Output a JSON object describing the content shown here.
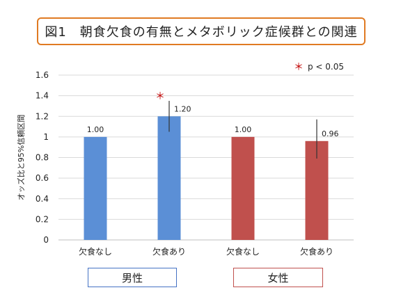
{
  "title": "図1　朝食欠食の有無とメタボリック症候群との関連",
  "significance_note": {
    "mark": "＊",
    "text": "p < 0.05"
  },
  "groups": [
    {
      "label": "男性",
      "color": "#4472c4"
    },
    {
      "label": "女性",
      "color": "#c0504d"
    }
  ],
  "chart_data": {
    "type": "bar",
    "categories": [
      "欠食なし",
      "欠食あり",
      "欠食なし",
      "欠食あり"
    ],
    "values": [
      1.0,
      1.2,
      1.0,
      0.96
    ],
    "value_labels": [
      "1.00",
      "1.20",
      "1.00",
      "0.96"
    ],
    "ci_low": [
      null,
      1.05,
      null,
      0.79
    ],
    "ci_high": [
      null,
      1.35,
      null,
      1.17
    ],
    "bar_colors": [
      "#5b8fd6",
      "#5b8fd6",
      "#c0504d",
      "#c0504d"
    ],
    "significant": [
      false,
      true,
      false,
      false
    ],
    "ylabel": "オッズ比と95%信頼区間",
    "ylim": [
      0,
      1.6
    ],
    "yticks": [
      "0",
      "0.2",
      "0.4",
      "0.6",
      "0.8",
      "1",
      "1.2",
      "1.4",
      "1.6"
    ],
    "grid": true
  }
}
